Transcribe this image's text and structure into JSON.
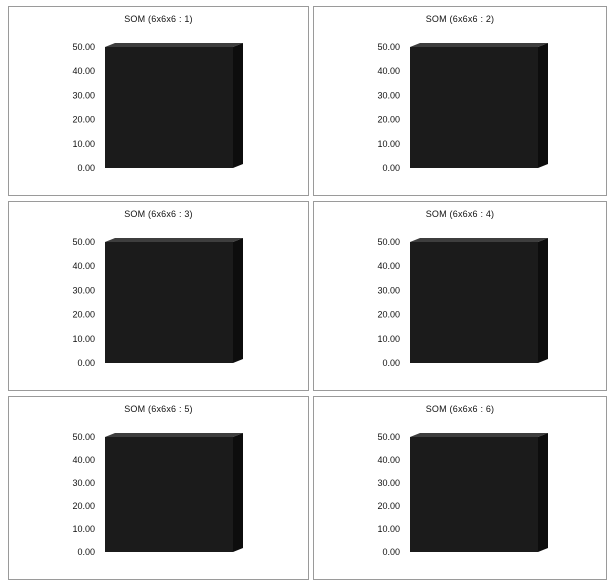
{
  "chart_data": [
    {
      "type": "bar",
      "title": "SOM (6x6x6 : 1)",
      "categories": [
        ""
      ],
      "values": [
        50
      ],
      "ylim": [
        0,
        50
      ],
      "ytick_labels": [
        "0.00",
        "10.00",
        "20.00",
        "30.00",
        "40.00",
        "50.00"
      ],
      "grid": false,
      "colors": {
        "front": "#1b1b1b",
        "top": "#3e3e3e",
        "side": "#0d0d0d"
      }
    },
    {
      "type": "bar",
      "title": "SOM (6x6x6 : 2)",
      "categories": [
        ""
      ],
      "values": [
        50
      ],
      "ylim": [
        0,
        50
      ],
      "ytick_labels": [
        "0.00",
        "10.00",
        "20.00",
        "30.00",
        "40.00",
        "50.00"
      ],
      "grid": false,
      "colors": {
        "front": "#1b1b1b",
        "top": "#3e3e3e",
        "side": "#0d0d0d"
      }
    },
    {
      "type": "bar",
      "title": "SOM (6x6x6 : 3)",
      "categories": [
        ""
      ],
      "values": [
        50
      ],
      "ylim": [
        0,
        50
      ],
      "ytick_labels": [
        "0.00",
        "10.00",
        "20.00",
        "30.00",
        "40.00",
        "50.00"
      ],
      "grid": false,
      "colors": {
        "front": "#1b1b1b",
        "top": "#3e3e3e",
        "side": "#0d0d0d"
      }
    },
    {
      "type": "bar",
      "title": "SOM (6x6x6 : 4)",
      "categories": [
        ""
      ],
      "values": [
        50
      ],
      "ylim": [
        0,
        50
      ],
      "ytick_labels": [
        "0.00",
        "10.00",
        "20.00",
        "30.00",
        "40.00",
        "50.00"
      ],
      "grid": false,
      "colors": {
        "front": "#1b1b1b",
        "top": "#3e3e3e",
        "side": "#0d0d0d"
      }
    },
    {
      "type": "bar",
      "title": "SOM (6x6x6 : 5)",
      "categories": [
        ""
      ],
      "values": [
        50
      ],
      "ylim": [
        0,
        50
      ],
      "ytick_labels": [
        "0.00",
        "10.00",
        "20.00",
        "30.00",
        "40.00",
        "50.00"
      ],
      "grid": false,
      "colors": {
        "front": "#1b1b1b",
        "top": "#3e3e3e",
        "side": "#0d0d0d"
      }
    },
    {
      "type": "bar",
      "title": "SOM (6x6x6 : 6)",
      "categories": [
        ""
      ],
      "values": [
        50
      ],
      "ylim": [
        0,
        50
      ],
      "ytick_labels": [
        "0.00",
        "10.00",
        "20.00",
        "30.00",
        "40.00",
        "50.00"
      ],
      "grid": false,
      "colors": {
        "front": "#1b1b1b",
        "top": "#3e3e3e",
        "side": "#0d0d0d"
      }
    }
  ]
}
